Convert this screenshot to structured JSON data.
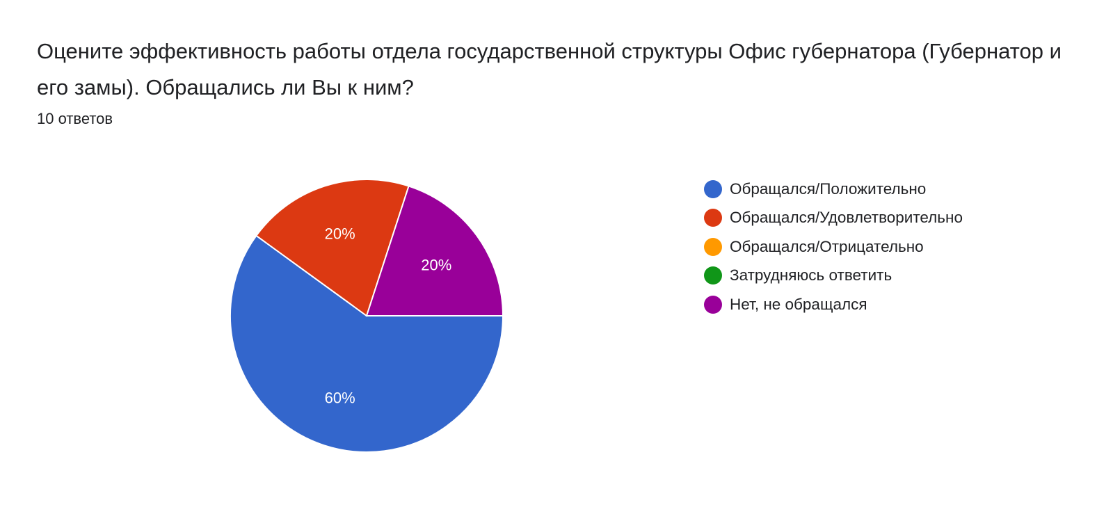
{
  "question": {
    "title": "Оцените эффективность работы отдела государственной структуры Офис губернатора (Губернатор и его замы). Обращались ли Вы к ним?",
    "response_count": "10 ответов"
  },
  "chart_data": {
    "type": "pie",
    "title": "",
    "categories": [
      "Обращался/Положительно",
      "Обращался/Удовлетворительно",
      "Обращался/Отрицательно",
      "Затрудняюсь ответить",
      "Нет, не обращался"
    ],
    "values": [
      60,
      20,
      0,
      0,
      20
    ],
    "data_labels": [
      "60%",
      "20%",
      "",
      "",
      "20%"
    ],
    "colors": [
      "#3366cc",
      "#dc3912",
      "#ff9900",
      "#109618",
      "#990099"
    ],
    "legend_position": "right"
  }
}
